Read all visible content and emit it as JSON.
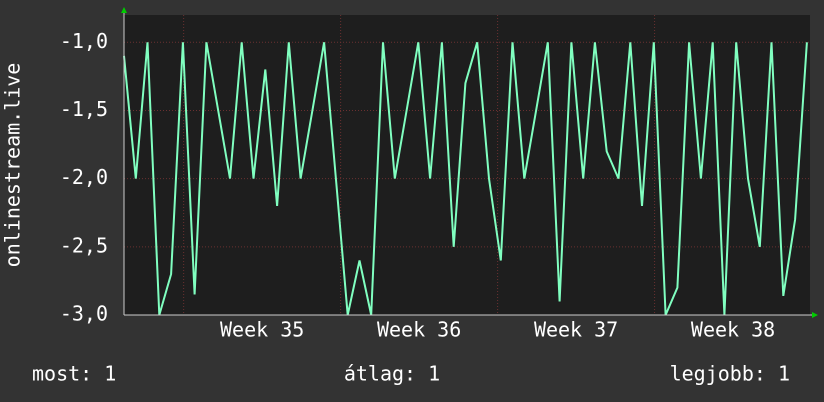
{
  "chart_data": {
    "type": "line",
    "y_label": "onlinestream.live",
    "x": [
      34.62,
      34.695,
      34.77,
      34.845,
      34.92,
      34.995,
      35.07,
      35.145,
      35.22,
      35.295,
      35.37,
      35.445,
      35.52,
      35.595,
      35.67,
      35.745,
      35.82,
      35.895,
      35.97,
      36.045,
      36.12,
      36.195,
      36.27,
      36.345,
      36.42,
      36.495,
      36.57,
      36.645,
      36.72,
      36.795,
      36.87,
      36.945,
      37.02,
      37.095,
      37.17,
      37.245,
      37.32,
      37.395,
      37.47,
      37.545,
      37.62,
      37.695,
      37.77,
      37.845,
      37.92,
      37.995,
      38.07,
      38.145,
      38.22,
      38.295,
      38.37,
      38.445,
      38.52,
      38.595,
      38.67,
      38.745,
      38.82,
      38.895,
      38.97
    ],
    "series": [
      {
        "color": "#80ffc0",
        "values": [
          -1.1,
          -2,
          -1,
          -3,
          -2.7,
          -1,
          -2.85,
          -1,
          -1.5,
          -2,
          -1,
          -2,
          -1.2,
          -2.2,
          -1,
          -2,
          -1.5,
          -1,
          -2,
          -3,
          -2.6,
          -3,
          -1,
          -2,
          -1.5,
          -1,
          -2,
          -1,
          -2.5,
          -1.3,
          -1,
          -2,
          -2.6,
          -1,
          -2,
          -1.5,
          -1,
          -2.9,
          -1,
          -2,
          -1,
          -1.8,
          -2,
          -1,
          -2.2,
          -1,
          -3,
          -2.8,
          -1,
          -2,
          -1,
          -3,
          -1,
          -2,
          -2.5,
          -1,
          -2.86,
          -2.3,
          -1
        ]
      }
    ],
    "xlim": [
      34.62,
      38.99
    ],
    "xgrid": [
      35,
      36,
      37,
      38
    ],
    "xticks": [
      {
        "value": 35.5,
        "label": "Week 35"
      },
      {
        "value": 36.5,
        "label": "Week 36"
      },
      {
        "value": 37.5,
        "label": "Week 37"
      },
      {
        "value": 38.5,
        "label": "Week 38"
      }
    ],
    "ylim": [
      -3,
      -0.8
    ],
    "yticks": [
      {
        "value": -3,
        "label": "-3,0"
      },
      {
        "value": -2.5,
        "label": "-2,5"
      },
      {
        "value": -2,
        "label": "-2,0"
      },
      {
        "value": -1.5,
        "label": "-1,5"
      },
      {
        "value": -1,
        "label": "-1,0"
      }
    ],
    "grid": true,
    "stats": [
      "most: 1",
      "átlag: 1",
      "legjobb: 1"
    ]
  }
}
